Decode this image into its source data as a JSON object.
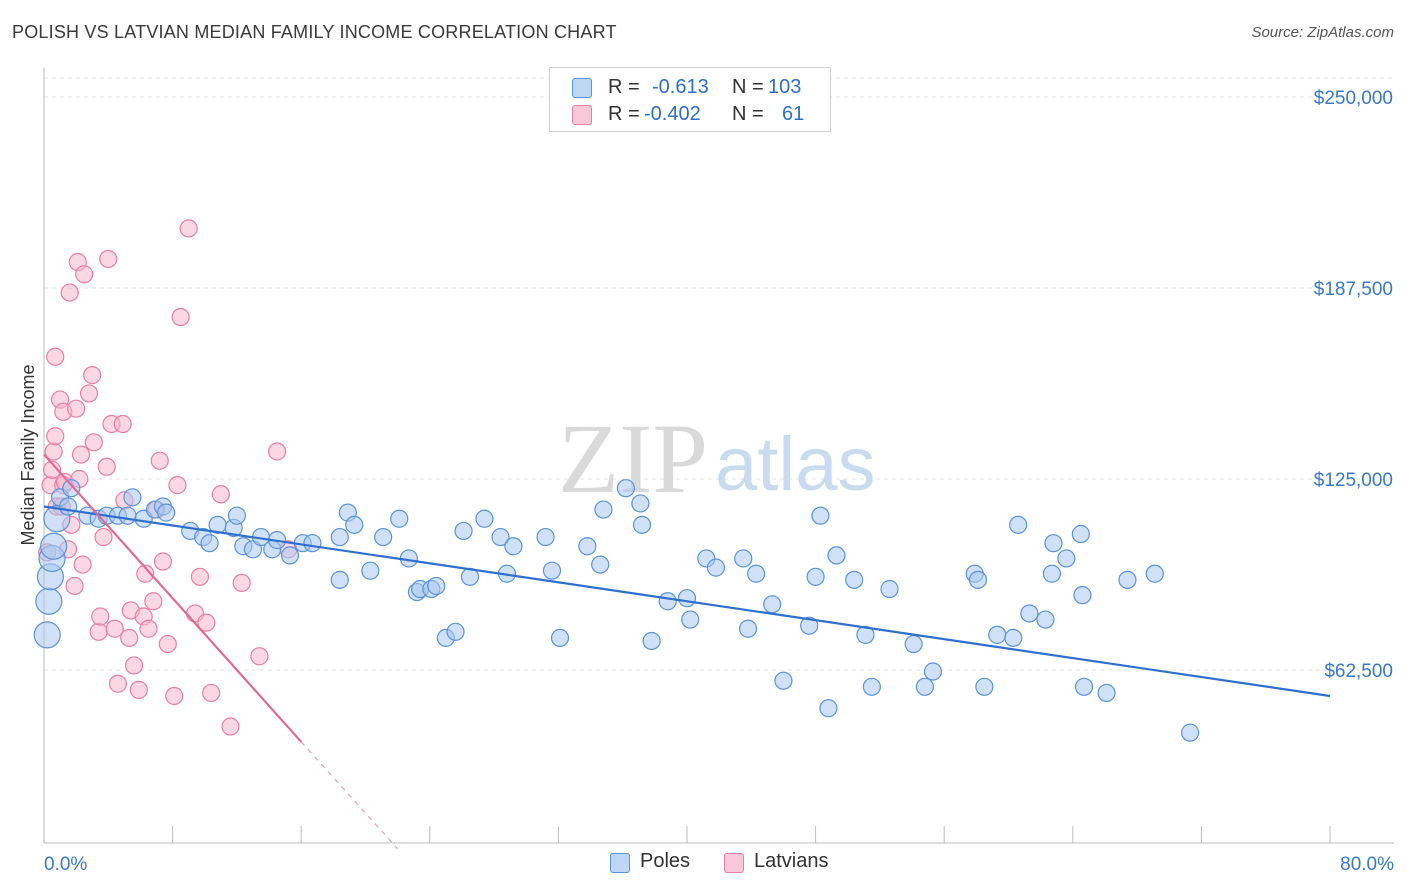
{
  "header": {
    "title": "POLISH VS LATVIAN MEDIAN FAMILY INCOME CORRELATION CHART",
    "source": "Source: ZipAtlas.com"
  },
  "watermark": {
    "zip": "ZIP",
    "atlas": "atlas"
  },
  "legend": {
    "rows": [
      {
        "r_label": "R =",
        "r_value": "-0.613",
        "n_label": "N =",
        "n_value": "103"
      },
      {
        "r_label": "R =",
        "r_value": "-0.402",
        "n_label": "N =",
        "n_value": "61"
      }
    ],
    "series_names": [
      "Poles",
      "Latvians"
    ]
  },
  "colors": {
    "poles_fill": "#a9c9f0",
    "poles_stroke": "#5b93d9",
    "poles_line": "#2f6fd0",
    "latvians_fill": "#f5b6cb",
    "latvians_stroke": "#e87fa4",
    "latvians_line": "#e06a94",
    "axis_label": "#3a78c9",
    "grid": "#e3e3e3"
  },
  "chart_data": {
    "type": "scatter",
    "title": "POLISH VS LATVIAN MEDIAN FAMILY INCOME CORRELATION CHART",
    "xlabel": "",
    "ylabel": "Median Family Income",
    "x_unit": "%",
    "xlim": [
      0,
      80
    ],
    "ylim": [
      10000,
      260000
    ],
    "x_tick_labels": [
      "0.0%",
      "80.0%"
    ],
    "y_ticks": [
      62500,
      125000,
      187500,
      250000
    ],
    "y_tick_labels": [
      "$62,500",
      "$125,000",
      "$187,500",
      "$250,000"
    ],
    "grid": true,
    "legend_position": "top-center",
    "series": [
      {
        "name": "Poles",
        "r": -0.613,
        "n": 103,
        "trend": {
          "x": [
            0,
            80
          ],
          "y": [
            116000,
            54000
          ]
        },
        "points": [
          [
            0.2,
            74000
          ],
          [
            0.3,
            85000
          ],
          [
            0.4,
            93000
          ],
          [
            0.5,
            99000
          ],
          [
            0.6,
            103000
          ],
          [
            0.8,
            112000
          ],
          [
            1.0,
            119000
          ],
          [
            1.5,
            116000
          ],
          [
            1.7,
            122000
          ],
          [
            2.7,
            113000
          ],
          [
            3.4,
            112000
          ],
          [
            3.9,
            113000
          ],
          [
            4.6,
            113000
          ],
          [
            5.2,
            113000
          ],
          [
            5.5,
            119000
          ],
          [
            6.2,
            112000
          ],
          [
            6.9,
            115000
          ],
          [
            7.4,
            116000
          ],
          [
            7.6,
            114000
          ],
          [
            9.1,
            108000
          ],
          [
            9.9,
            106000
          ],
          [
            10.3,
            104000
          ],
          [
            10.8,
            110000
          ],
          [
            11.8,
            109000
          ],
          [
            12.0,
            113000
          ],
          [
            12.4,
            103000
          ],
          [
            13.0,
            102000
          ],
          [
            13.5,
            106000
          ],
          [
            14.2,
            102000
          ],
          [
            14.5,
            105000
          ],
          [
            15.3,
            100000
          ],
          [
            16.1,
            104000
          ],
          [
            16.7,
            104000
          ],
          [
            18.4,
            106000
          ],
          [
            18.4,
            92000
          ],
          [
            18.9,
            114000
          ],
          [
            19.3,
            110000
          ],
          [
            20.3,
            95000
          ],
          [
            21.1,
            106000
          ],
          [
            22.1,
            112000
          ],
          [
            22.7,
            99000
          ],
          [
            23.2,
            88000
          ],
          [
            23.4,
            89000
          ],
          [
            24.1,
            89000
          ],
          [
            24.4,
            90000
          ],
          [
            25.0,
            73000
          ],
          [
            25.6,
            75000
          ],
          [
            26.1,
            108000
          ],
          [
            26.5,
            93000
          ],
          [
            27.4,
            112000
          ],
          [
            28.4,
            106000
          ],
          [
            28.8,
            94000
          ],
          [
            29.2,
            103000
          ],
          [
            31.2,
            106000
          ],
          [
            31.6,
            95000
          ],
          [
            32.1,
            73000
          ],
          [
            33.8,
            103000
          ],
          [
            34.6,
            97000
          ],
          [
            34.8,
            115000
          ],
          [
            36.2,
            122000
          ],
          [
            37.1,
            117000
          ],
          [
            37.2,
            110000
          ],
          [
            37.8,
            72000
          ],
          [
            38.8,
            85000
          ],
          [
            40.0,
            86000
          ],
          [
            40.2,
            79000
          ],
          [
            41.2,
            99000
          ],
          [
            41.8,
            96000
          ],
          [
            43.5,
            99000
          ],
          [
            43.8,
            76000
          ],
          [
            44.3,
            94000
          ],
          [
            45.3,
            84000
          ],
          [
            46.0,
            59000
          ],
          [
            47.6,
            77000
          ],
          [
            48.0,
            93000
          ],
          [
            48.3,
            113000
          ],
          [
            48.8,
            50000
          ],
          [
            49.3,
            100000
          ],
          [
            50.4,
            92000
          ],
          [
            51.1,
            74000
          ],
          [
            51.5,
            57000
          ],
          [
            52.6,
            89000
          ],
          [
            54.1,
            71000
          ],
          [
            54.8,
            57000
          ],
          [
            55.3,
            62000
          ],
          [
            57.9,
            94000
          ],
          [
            58.1,
            92000
          ],
          [
            58.5,
            57000
          ],
          [
            59.3,
            74000
          ],
          [
            60.3,
            73000
          ],
          [
            60.6,
            110000
          ],
          [
            61.3,
            81000
          ],
          [
            62.3,
            79000
          ],
          [
            62.7,
            94000
          ],
          [
            62.8,
            104000
          ],
          [
            63.6,
            99000
          ],
          [
            64.5,
            107000
          ],
          [
            64.6,
            87000
          ],
          [
            64.7,
            57000
          ],
          [
            66.1,
            55000
          ],
          [
            67.4,
            92000
          ],
          [
            69.1,
            94000
          ],
          [
            71.3,
            42000
          ]
        ]
      },
      {
        "name": "Latvians",
        "r": -0.402,
        "n": 61,
        "trend": {
          "x": [
            0,
            16
          ],
          "y": [
            133000,
            39000
          ]
        },
        "trend_dashed": {
          "x": [
            16,
            22
          ],
          "y": [
            39000,
            4000
          ]
        },
        "points": [
          [
            0.2,
            101000
          ],
          [
            0.4,
            123000
          ],
          [
            0.5,
            128000
          ],
          [
            0.6,
            134000
          ],
          [
            0.7,
            139000
          ],
          [
            0.7,
            165000
          ],
          [
            0.8,
            116000
          ],
          [
            1.0,
            151000
          ],
          [
            1.1,
            116000
          ],
          [
            1.2,
            147000
          ],
          [
            1.2,
            123000
          ],
          [
            1.3,
            124000
          ],
          [
            1.5,
            102000
          ],
          [
            1.6,
            186000
          ],
          [
            1.7,
            110000
          ],
          [
            1.9,
            90000
          ],
          [
            2.0,
            148000
          ],
          [
            2.1,
            196000
          ],
          [
            2.2,
            125000
          ],
          [
            2.3,
            133000
          ],
          [
            2.4,
            97000
          ],
          [
            2.5,
            192000
          ],
          [
            2.8,
            153000
          ],
          [
            3.0,
            159000
          ],
          [
            3.1,
            137000
          ],
          [
            3.4,
            75000
          ],
          [
            3.5,
            80000
          ],
          [
            3.7,
            106000
          ],
          [
            3.9,
            129000
          ],
          [
            4.0,
            197000
          ],
          [
            4.2,
            143000
          ],
          [
            4.4,
            76000
          ],
          [
            4.6,
            58000
          ],
          [
            4.9,
            143000
          ],
          [
            5.0,
            118000
          ],
          [
            5.3,
            73000
          ],
          [
            5.4,
            82000
          ],
          [
            5.6,
            64000
          ],
          [
            5.9,
            56000
          ],
          [
            6.2,
            80000
          ],
          [
            6.3,
            94000
          ],
          [
            6.5,
            76000
          ],
          [
            6.8,
            85000
          ],
          [
            7.0,
            115000
          ],
          [
            7.2,
            131000
          ],
          [
            7.4,
            98000
          ],
          [
            7.7,
            71000
          ],
          [
            8.1,
            54000
          ],
          [
            8.3,
            123000
          ],
          [
            8.5,
            178000
          ],
          [
            9.0,
            207000
          ],
          [
            9.4,
            81000
          ],
          [
            9.7,
            93000
          ],
          [
            10.1,
            78000
          ],
          [
            10.4,
            55000
          ],
          [
            11.0,
            120000
          ],
          [
            11.6,
            44000
          ],
          [
            12.3,
            91000
          ],
          [
            13.4,
            67000
          ],
          [
            14.5,
            134000
          ],
          [
            15.2,
            102000
          ]
        ]
      }
    ]
  }
}
